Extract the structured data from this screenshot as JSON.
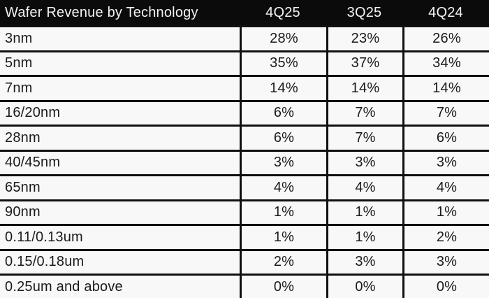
{
  "table": {
    "header": {
      "title": "Wafer Revenue by Technology",
      "cols": [
        "4Q25",
        "3Q25",
        "4Q24"
      ]
    },
    "rows": [
      {
        "label": "3nm",
        "values": [
          "28%",
          "23%",
          "26%"
        ]
      },
      {
        "label": "5nm",
        "values": [
          "35%",
          "37%",
          "34%"
        ]
      },
      {
        "label": "7nm",
        "values": [
          "14%",
          "14%",
          "14%"
        ]
      },
      {
        "label": "16/20nm",
        "values": [
          "6%",
          "7%",
          "7%"
        ]
      },
      {
        "label": "28nm",
        "values": [
          "6%",
          "7%",
          "6%"
        ]
      },
      {
        "label": "40/45nm",
        "values": [
          "3%",
          "3%",
          "3%"
        ]
      },
      {
        "label": "65nm",
        "values": [
          "4%",
          "4%",
          "4%"
        ]
      },
      {
        "label": "90nm",
        "values": [
          "1%",
          "1%",
          "1%"
        ]
      },
      {
        "label": "0.11/0.13um",
        "values": [
          "1%",
          "1%",
          "2%"
        ]
      },
      {
        "label": "0.15/0.18um",
        "values": [
          "2%",
          "3%",
          "3%"
        ]
      },
      {
        "label": "0.25um and above",
        "values": [
          "0%",
          "0%",
          "0%"
        ]
      }
    ]
  },
  "colors": {
    "header_bg": "#0b0b0b",
    "header_text": "#f2f2f2",
    "row_bg": "#f8f8f8",
    "border": "#101010",
    "body_text": "#1a1a1a"
  },
  "chart_data": {
    "type": "table",
    "title": "Wafer Revenue by Technology",
    "unit": "%",
    "categories": [
      "3nm",
      "5nm",
      "7nm",
      "16/20nm",
      "28nm",
      "40/45nm",
      "65nm",
      "90nm",
      "0.11/0.13um",
      "0.15/0.18um",
      "0.25um and above"
    ],
    "series": [
      {
        "name": "4Q25",
        "values": [
          28,
          35,
          14,
          6,
          6,
          3,
          4,
          1,
          1,
          2,
          0
        ]
      },
      {
        "name": "3Q25",
        "values": [
          23,
          37,
          14,
          7,
          7,
          3,
          4,
          1,
          1,
          3,
          0
        ]
      },
      {
        "name": "4Q24",
        "values": [
          26,
          34,
          14,
          7,
          6,
          3,
          4,
          1,
          2,
          3,
          0
        ]
      }
    ]
  }
}
